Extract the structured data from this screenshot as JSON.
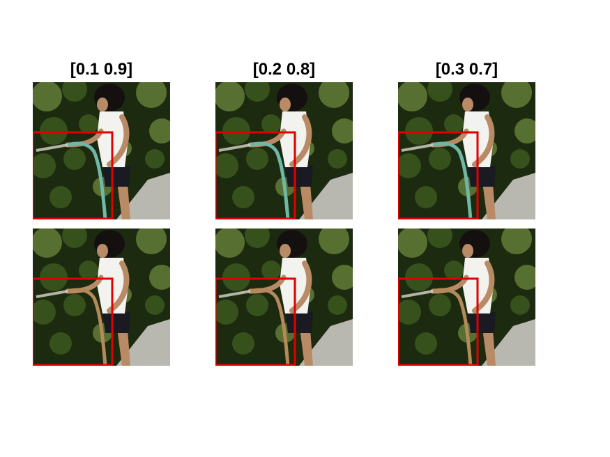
{
  "figure": {
    "columns": [
      {
        "title": "[0.1 0.9]"
      },
      {
        "title": "[0.2 0.8]"
      },
      {
        "title": "[0.3 0.7]"
      }
    ],
    "rows": [
      {
        "hose_color": "#6fb8a8"
      },
      {
        "hose_color": "#b58a5a"
      }
    ],
    "colors": {
      "box": "#e00000",
      "foliage_dark": "#1c2a10",
      "foliage_mid": "#3d5b1f",
      "foliage_light": "#88a84a",
      "pavement": "#b9b8b0",
      "shirt": "#f2f2ee",
      "skin": "#b98a66",
      "hair": "#141010",
      "shorts": "#1a1a22"
    }
  }
}
